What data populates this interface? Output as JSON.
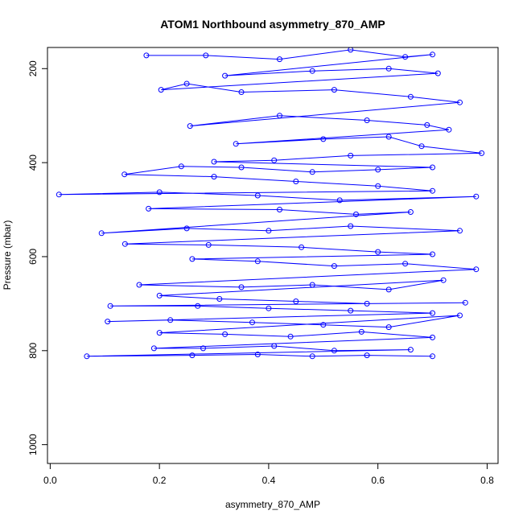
{
  "chart_data": {
    "type": "line",
    "title": "ATOM1 Northbound asymmetry_870_AMP",
    "xlabel": "asymmetry_870_AMP",
    "ylabel": "Pressure (mbar)",
    "xlim": [
      -0.005,
      0.82
    ],
    "ylim": [
      1040,
      155
    ],
    "y_inverted": true,
    "x_ticks": [
      "0.0",
      "0.2",
      "0.4",
      "0.6",
      "0.8"
    ],
    "x_tick_values": [
      0.0,
      0.2,
      0.4,
      0.6,
      0.8
    ],
    "y_ticks": [
      "200",
      "400",
      "600",
      "800",
      "1000"
    ],
    "y_tick_values": [
      200,
      400,
      600,
      800,
      1000
    ],
    "grid": false,
    "series": [
      {
        "color": "#0000ff",
        "marker": "open-circle",
        "line": true,
        "note_points": "sampled profile points, pressure in mbar",
        "points": [
          [
            0.176,
            172
          ],
          [
            0.285,
            172
          ],
          [
            0.42,
            180
          ],
          [
            0.55,
            160
          ],
          [
            0.65,
            175
          ],
          [
            0.7,
            170
          ],
          [
            0.32,
            215
          ],
          [
            0.48,
            205
          ],
          [
            0.62,
            200
          ],
          [
            0.71,
            210
          ],
          [
            0.203,
            245
          ],
          [
            0.25,
            232
          ],
          [
            0.35,
            250
          ],
          [
            0.52,
            245
          ],
          [
            0.66,
            260
          ],
          [
            0.75,
            272
          ],
          [
            0.256,
            322
          ],
          [
            0.42,
            300
          ],
          [
            0.58,
            310
          ],
          [
            0.69,
            320
          ],
          [
            0.73,
            330
          ],
          [
            0.34,
            360
          ],
          [
            0.5,
            350
          ],
          [
            0.62,
            345
          ],
          [
            0.68,
            365
          ],
          [
            0.79,
            380
          ],
          [
            0.55,
            385
          ],
          [
            0.41,
            395
          ],
          [
            0.3,
            398
          ],
          [
            0.7,
            410
          ],
          [
            0.6,
            415
          ],
          [
            0.48,
            420
          ],
          [
            0.35,
            410
          ],
          [
            0.24,
            408
          ],
          [
            0.136,
            425
          ],
          [
            0.3,
            430
          ],
          [
            0.45,
            440
          ],
          [
            0.6,
            450
          ],
          [
            0.7,
            460
          ],
          [
            0.016,
            468
          ],
          [
            0.2,
            463
          ],
          [
            0.38,
            470
          ],
          [
            0.53,
            480
          ],
          [
            0.78,
            472
          ],
          [
            0.18,
            498
          ],
          [
            0.42,
            500
          ],
          [
            0.56,
            510
          ],
          [
            0.66,
            505
          ],
          [
            0.094,
            550
          ],
          [
            0.25,
            540
          ],
          [
            0.4,
            545
          ],
          [
            0.55,
            535
          ],
          [
            0.75,
            545
          ],
          [
            0.137,
            573
          ],
          [
            0.29,
            575
          ],
          [
            0.46,
            580
          ],
          [
            0.6,
            590
          ],
          [
            0.7,
            595
          ],
          [
            0.26,
            605
          ],
          [
            0.38,
            610
          ],
          [
            0.52,
            620
          ],
          [
            0.65,
            615
          ],
          [
            0.78,
            627
          ],
          [
            0.163,
            660
          ],
          [
            0.35,
            665
          ],
          [
            0.48,
            660
          ],
          [
            0.62,
            670
          ],
          [
            0.72,
            650
          ],
          [
            0.2,
            683
          ],
          [
            0.31,
            690
          ],
          [
            0.45,
            695
          ],
          [
            0.58,
            700
          ],
          [
            0.76,
            698
          ],
          [
            0.11,
            705
          ],
          [
            0.27,
            705
          ],
          [
            0.4,
            710
          ],
          [
            0.55,
            715
          ],
          [
            0.7,
            720
          ],
          [
            0.105,
            738
          ],
          [
            0.22,
            735
          ],
          [
            0.37,
            740
          ],
          [
            0.5,
            745
          ],
          [
            0.62,
            750
          ],
          [
            0.75,
            725
          ],
          [
            0.2,
            762
          ],
          [
            0.32,
            765
          ],
          [
            0.44,
            770
          ],
          [
            0.57,
            760
          ],
          [
            0.7,
            772
          ],
          [
            0.19,
            795
          ],
          [
            0.28,
            795
          ],
          [
            0.41,
            790
          ],
          [
            0.52,
            800
          ],
          [
            0.66,
            798
          ],
          [
            0.067,
            812
          ],
          [
            0.26,
            810
          ],
          [
            0.38,
            808
          ],
          [
            0.48,
            812
          ],
          [
            0.58,
            810
          ],
          [
            0.7,
            812
          ]
        ]
      }
    ]
  }
}
